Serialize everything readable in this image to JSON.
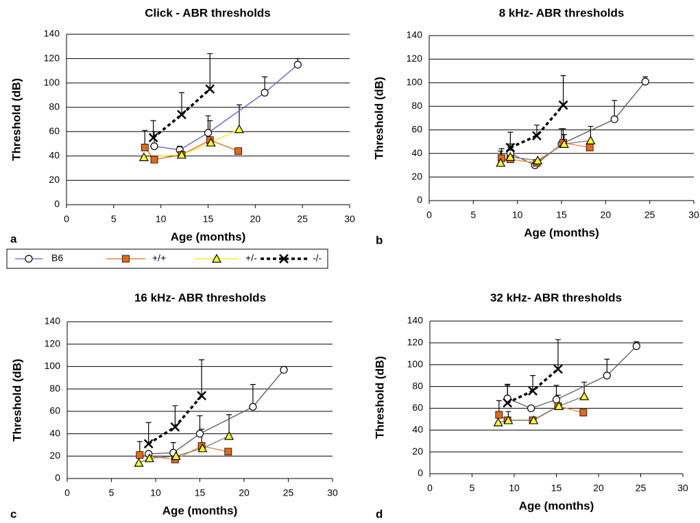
{
  "chart_data": [
    {
      "type": "line",
      "title": "Click - ABR thresholds",
      "panel_label": "a",
      "xlabel": "Age (months)",
      "ylabel": "Threshold (dB)",
      "xlim": [
        0,
        30
      ],
      "xticks": [
        0,
        5,
        10,
        15,
        20,
        25,
        30
      ],
      "ylim": [
        0,
        140
      ],
      "yticks": [
        0,
        20,
        40,
        60,
        80,
        100,
        120,
        140
      ],
      "grid": true,
      "series": [
        {
          "name": "B6",
          "color": "#5a5ad0",
          "marker": "circle",
          "marker_fill": "#ffffff",
          "dash": false,
          "x": [
            9.3,
            12,
            15,
            21,
            24.5
          ],
          "values": [
            48,
            45,
            59,
            92,
            115
          ],
          "errors": [
            12,
            3,
            14,
            13,
            5
          ]
        },
        {
          "name": "+/+",
          "color": "#e06a1a",
          "marker": "square",
          "marker_fill": "#e06a1a",
          "dash": false,
          "x": [
            8.3,
            9.3,
            12.2,
            15.2,
            18.2
          ],
          "values": [
            47,
            37,
            41,
            53,
            44
          ],
          "errors": [
            14,
            0,
            0,
            16,
            0
          ]
        },
        {
          "name": "+/-",
          "color": "#f5e800",
          "marker": "triangle",
          "marker_fill": "#ffff33",
          "dash": false,
          "x": [
            8.2,
            12.2,
            15.3,
            18.3
          ],
          "values": [
            39,
            41,
            51,
            62
          ],
          "errors": [
            0,
            0,
            0,
            20
          ]
        },
        {
          "name": "-/-",
          "color": "#000000",
          "marker": "cross",
          "marker_fill": "#000000",
          "dash": true,
          "x": [
            9.2,
            12.2,
            15.2
          ],
          "values": [
            55,
            74,
            95
          ],
          "errors": [
            14,
            18,
            29
          ]
        }
      ]
    },
    {
      "type": "line",
      "title": "8 kHz- ABR thresholds",
      "panel_label": "b",
      "xlabel": "Age (months)",
      "ylabel": "Threshold (dB)",
      "xlim": [
        0,
        30
      ],
      "xticks": [
        0,
        5,
        10,
        15,
        20,
        25,
        30
      ],
      "ylim": [
        0,
        140
      ],
      "yticks": [
        0,
        20,
        40,
        60,
        80,
        100,
        120,
        140
      ],
      "grid": true,
      "series": [
        {
          "color": "#555555",
          "marker": "circle",
          "marker_fill": "#ffffff",
          "dash": false,
          "x": [
            9.2,
            12,
            15,
            21,
            24.5
          ],
          "values": [
            40,
            30,
            48,
            69,
            101
          ],
          "errors": [
            8,
            0,
            13,
            16,
            4
          ]
        },
        {
          "color": "#e8803a",
          "marker": "square",
          "marker_fill": "#e06a1a",
          "dash": false,
          "x": [
            8.2,
            9.2,
            12.2,
            15.2,
            18.2
          ],
          "values": [
            36,
            35,
            32,
            49,
            45
          ],
          "errors": [
            8,
            0,
            0,
            12,
            0
          ]
        },
        {
          "color": "#777777",
          "marker": "triangle",
          "marker_fill": "#ffff33",
          "dash": false,
          "x": [
            8.1,
            9.2,
            12.3,
            15.3,
            18.3
          ],
          "values": [
            32,
            37,
            34,
            48,
            51
          ],
          "errors": [
            10,
            8,
            0,
            8,
            12
          ]
        },
        {
          "color": "#000000",
          "marker": "cross",
          "marker_fill": "#000000",
          "dash": true,
          "x": [
            9.2,
            12.2,
            15.2
          ],
          "values": [
            45,
            55,
            81
          ],
          "errors": [
            13,
            9,
            25
          ]
        }
      ]
    },
    {
      "type": "line",
      "title": "16 kHz- ABR thresholds",
      "panel_label": "c",
      "xlabel": "Age (months)",
      "ylabel": "Threshold (dB)",
      "xlim": [
        0,
        30
      ],
      "xticks": [
        0,
        5,
        10,
        15,
        20,
        25,
        30
      ],
      "ylim": [
        0,
        140
      ],
      "yticks": [
        0,
        20,
        40,
        60,
        80,
        100,
        120,
        140
      ],
      "grid": true,
      "series": [
        {
          "color": "#555555",
          "marker": "circle",
          "marker_fill": "#ffffff",
          "dash": false,
          "x": [
            9.2,
            12,
            15,
            21,
            24.5
          ],
          "values": [
            22,
            23,
            40,
            64,
            97
          ],
          "errors": [
            0,
            9,
            16,
            20,
            3
          ]
        },
        {
          "color": "#e8803a",
          "marker": "square",
          "marker_fill": "#e06a1a",
          "dash": false,
          "x": [
            8.2,
            12.2,
            15.2,
            18.2
          ],
          "values": [
            21,
            17,
            29,
            24
          ],
          "errors": [
            12,
            0,
            15,
            0
          ]
        },
        {
          "color": "#777777",
          "marker": "triangle",
          "marker_fill": "#ffff33",
          "dash": false,
          "x": [
            8.1,
            9.3,
            12.3,
            15.3,
            18.3
          ],
          "values": [
            14,
            18,
            20,
            27,
            38
          ],
          "errors": [
            0,
            0,
            0,
            0,
            19
          ]
        },
        {
          "color": "#000000",
          "marker": "cross",
          "marker_fill": "#000000",
          "dash": true,
          "x": [
            9.2,
            12.2,
            15.2
          ],
          "values": [
            31,
            46,
            74
          ],
          "errors": [
            19,
            19,
            32
          ]
        }
      ]
    },
    {
      "type": "line",
      "title": "32 kHz- ABR thresholds",
      "panel_label": "d",
      "xlabel": "Age (months)",
      "ylabel": "Threshold (dB)",
      "xlim": [
        0,
        30
      ],
      "xticks": [
        0,
        5,
        10,
        15,
        20,
        25,
        30
      ],
      "ylim": [
        0,
        140
      ],
      "yticks": [
        0,
        20,
        40,
        60,
        80,
        100,
        120,
        140
      ],
      "grid": true,
      "series": [
        {
          "color": "#555555",
          "marker": "circle",
          "marker_fill": "#ffffff",
          "dash": false,
          "x": [
            9.2,
            12,
            15,
            21,
            24.5
          ],
          "values": [
            69,
            60,
            68,
            90,
            117
          ],
          "errors": [
            12,
            0,
            13,
            15,
            4
          ]
        },
        {
          "color": "#e8803a",
          "marker": "square",
          "marker_fill": "#e06a1a",
          "dash": false,
          "x": [
            8.2,
            9.2,
            12.2,
            15.2,
            18.2
          ],
          "values": [
            54,
            49,
            49,
            62,
            56
          ],
          "errors": [
            13,
            0,
            0,
            10,
            0
          ]
        },
        {
          "color": "#777777",
          "marker": "triangle",
          "marker_fill": "#ffff33",
          "dash": false,
          "x": [
            8.1,
            9.3,
            12.3,
            15.3,
            18.3
          ],
          "values": [
            47,
            49,
            49,
            62,
            71
          ],
          "errors": [
            0,
            8,
            0,
            0,
            13
          ]
        },
        {
          "color": "#000000",
          "marker": "cross",
          "marker_fill": "#000000",
          "dash": true,
          "x": [
            9.2,
            12.2,
            15.2
          ],
          "values": [
            65,
            76,
            96
          ],
          "errors": [
            17,
            14,
            27
          ]
        }
      ]
    }
  ]
}
